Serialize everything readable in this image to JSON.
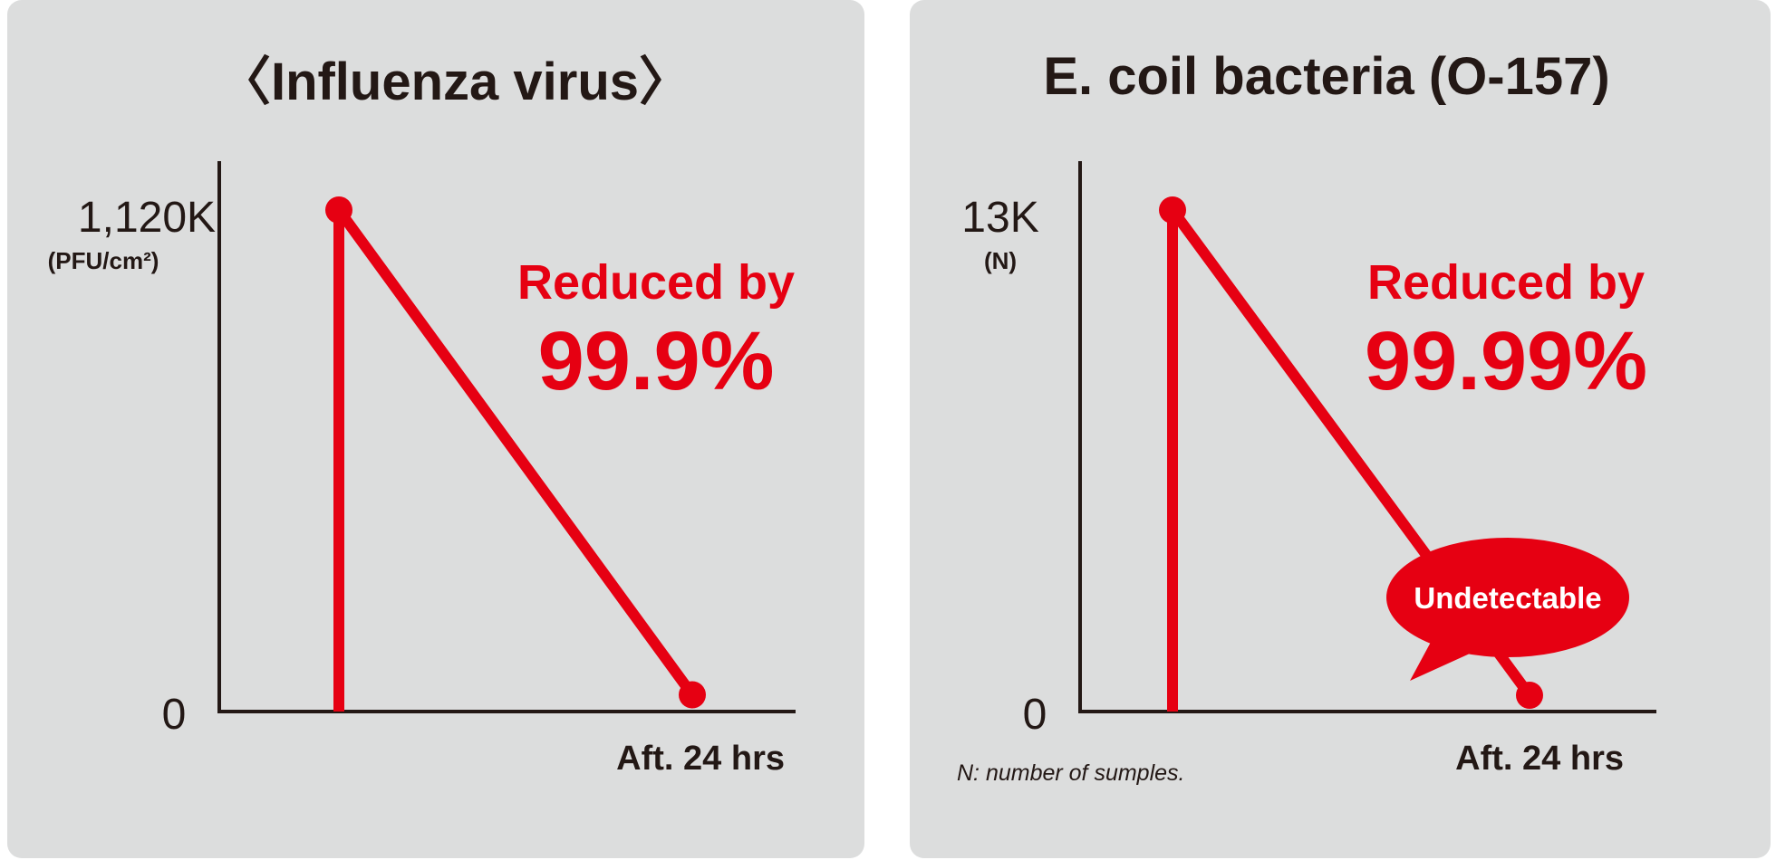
{
  "colors": {
    "panel_bg": "#dcdddd",
    "axis": "#231815",
    "accent": "#e60012",
    "text": "#231815"
  },
  "chart_data": [
    {
      "type": "line",
      "title": "〈Influenza virus〉",
      "x": [
        "",
        "Aft. 24 hrs"
      ],
      "values": [
        1120,
        1.12
      ],
      "ylim": [
        0,
        1120
      ],
      "y_max_label": "1,120K",
      "y_unit": "(PFU/cm²)",
      "y_min_label": "0",
      "x_end_label": "Aft. 24 hrs",
      "annotation": {
        "line1": "Reduced by",
        "line2": "99.9%"
      },
      "grid": false
    },
    {
      "type": "line",
      "title": "E. coil bacteria (O-157)",
      "x": [
        "",
        "Aft. 24 hrs"
      ],
      "values": [
        13,
        0
      ],
      "ylim": [
        0,
        13
      ],
      "y_max_label": "13K",
      "y_unit": "(N)",
      "y_min_label": "0",
      "x_end_label": "Aft. 24 hrs",
      "annotation": {
        "line1": "Reduced by",
        "line2": "99.99%"
      },
      "callout": "Undetectable",
      "footnote": "N: number of sumples.",
      "grid": false
    }
  ]
}
